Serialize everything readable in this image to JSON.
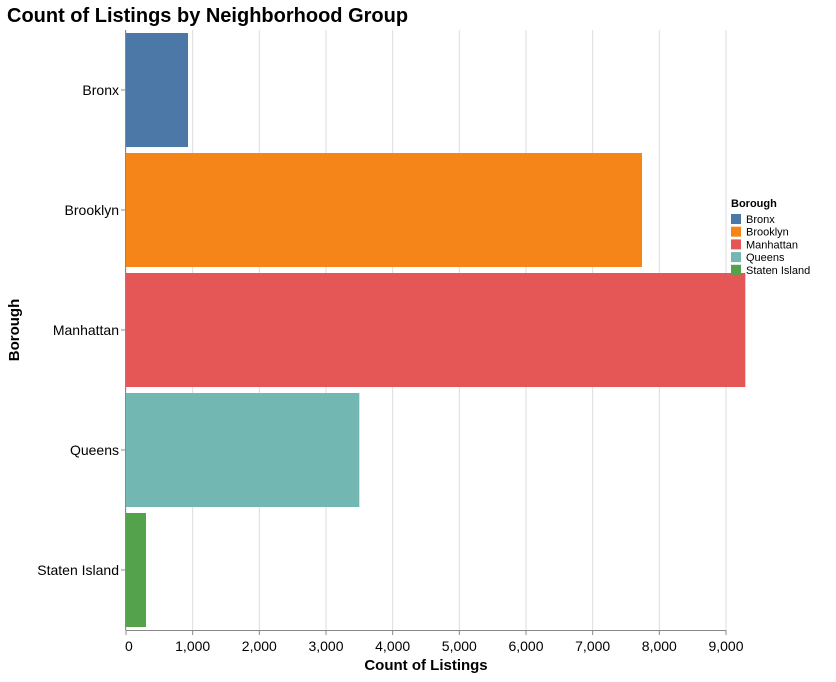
{
  "chart_data": {
    "type": "bar",
    "orientation": "horizontal",
    "title": "Count of Listings by Neighborhood Group",
    "xlabel": "Count of Listings",
    "ylabel": "Borough",
    "categories": [
      "Bronx",
      "Brooklyn",
      "Manhattan",
      "Queens",
      "Staten Island"
    ],
    "values": [
      930,
      7740,
      9290,
      3500,
      300
    ],
    "colors": [
      "#4c78a8",
      "#f58518",
      "#e45756",
      "#72b7b2",
      "#54a24b"
    ],
    "xlim": [
      0,
      9000
    ],
    "xticks": [
      0,
      1000,
      2000,
      3000,
      4000,
      5000,
      6000,
      7000,
      8000,
      9000
    ],
    "xtick_labels": [
      "0",
      "1,000",
      "2,000",
      "3,000",
      "4,000",
      "5,000",
      "6,000",
      "7,000",
      "8,000",
      "9,000"
    ],
    "grid": true,
    "legend": {
      "title": "Borough",
      "position": "top-right",
      "entries": [
        "Bronx",
        "Brooklyn",
        "Manhattan",
        "Queens",
        "Staten Island"
      ]
    }
  }
}
